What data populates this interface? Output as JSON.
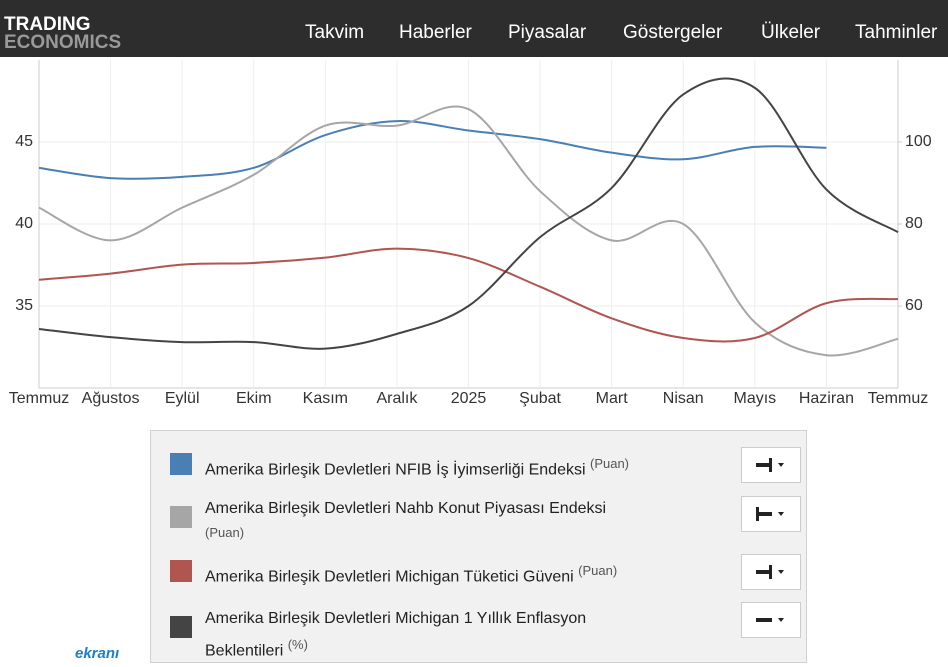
{
  "header": {
    "logo": [
      "TRADING",
      "ECONOMICS"
    ],
    "nav": [
      "Takvim",
      "Haberler",
      "Piyasalar",
      "Göstergeler",
      "Ülkeler",
      "Tahminler"
    ]
  },
  "chart_data": {
    "type": "line",
    "categories": [
      "Temmuz",
      "Ağustos",
      "Eylül",
      "Ekim",
      "Kasım",
      "Aralık",
      "2025",
      "Şubat",
      "Mart",
      "Nisan",
      "Mayıs",
      "Haziran",
      "Temmuz"
    ],
    "ylim": [
      30,
      50
    ],
    "yticks": [
      35,
      40,
      45
    ],
    "y2lim": [
      40,
      120
    ],
    "y2ticks": [
      60,
      80,
      100
    ],
    "grid": true,
    "series": [
      {
        "name": "Amerika Birleşik Devletleri NFIB İş İyimserliği Endeksi",
        "unit": "(Puan)",
        "color": "#4a7fb5",
        "axis": "y2",
        "values": [
          93.7,
          91.2,
          91.5,
          93.7,
          101.7,
          105.1,
          102.8,
          100.7,
          97.4,
          95.8,
          98.8,
          98.6,
          null
        ]
      },
      {
        "name": "Amerika Birleşik Devletleri Nahb Konut Piyasası Endeksi",
        "unit": "(Puan)",
        "color": "#a6a6a6",
        "values": [
          41,
          39,
          41,
          43,
          46,
          46,
          47,
          42,
          39,
          40,
          34,
          32,
          33
        ]
      },
      {
        "name": "Amerika Birleşik Devletleri Michigan Tüketici Güveni",
        "unit": "(Puan)",
        "color": "#b0554f",
        "axis": "y2",
        "values": [
          66.4,
          67.9,
          70.1,
          70.5,
          71.8,
          74.0,
          71.7,
          64.7,
          57.0,
          52.2,
          52.2,
          60.7,
          61.7
        ]
      },
      {
        "name": "Amerika Birleşik Devletleri Michigan 1 Yıllık Enflasyon Beklentileri",
        "unit": "(%)",
        "color": "#444444",
        "values": [
          33.6,
          33.1,
          32.8,
          32.8,
          32.4,
          33.3,
          35.0,
          39.2,
          42.2,
          47.9,
          48.3,
          42.1,
          39.5
        ]
      }
    ]
  },
  "watermark": "ekranı"
}
